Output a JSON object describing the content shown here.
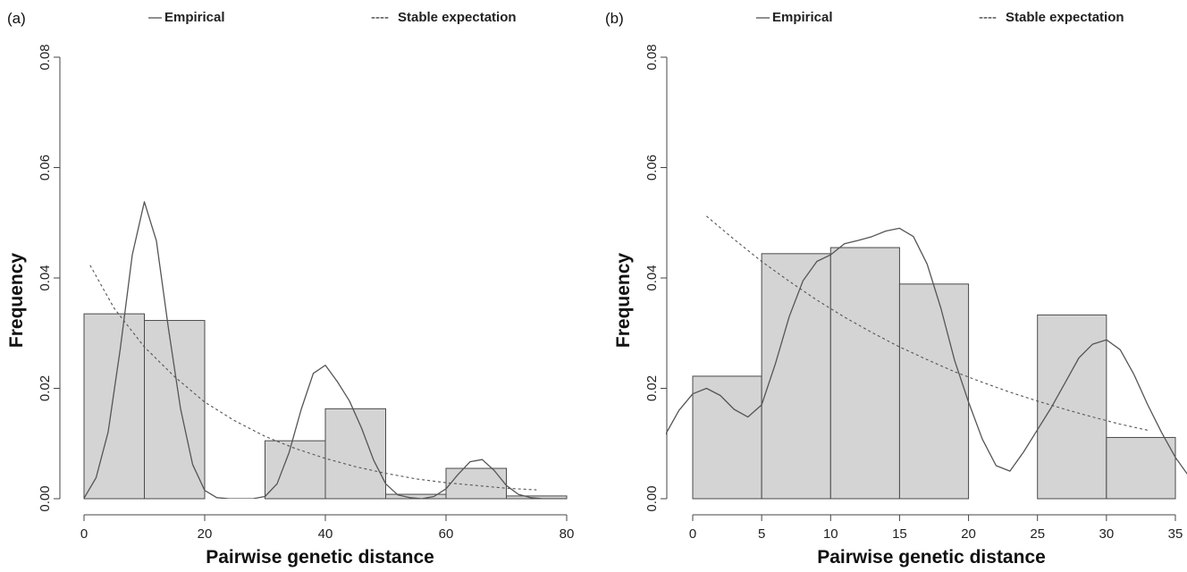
{
  "chart_data": [
    {
      "type": "bar",
      "panel_label": "(a)",
      "legend": {
        "empirical": "Empirical",
        "expected": "Stable expectation"
      },
      "legend_prefix_empirical": "—",
      "legend_prefix_expected": "----",
      "xlabel": "Pairwise genetic distance",
      "ylabel": "Frequency",
      "xlim": [
        0,
        80
      ],
      "ylim": [
        0,
        0.08
      ],
      "xticks": [
        0,
        20,
        40,
        60,
        80
      ],
      "xtick_labels": [
        "0",
        "20",
        "40",
        "60",
        "80"
      ],
      "yticks": [
        0,
        0.02,
        0.04,
        0.06,
        0.08
      ],
      "ytick_labels": [
        "0.00",
        "0.02",
        "0.04",
        "0.06",
        "0.08"
      ],
      "bins": [
        {
          "x0": 0,
          "x1": 10,
          "value": 0.0335
        },
        {
          "x0": 10,
          "x1": 20,
          "value": 0.0323
        },
        {
          "x0": 30,
          "x1": 40,
          "value": 0.0105
        },
        {
          "x0": 40,
          "x1": 50,
          "value": 0.0163
        },
        {
          "x0": 50,
          "x1": 60,
          "value": 0.0008
        },
        {
          "x0": 60,
          "x1": 70,
          "value": 0.0055
        },
        {
          "x0": 70,
          "x1": 80,
          "value": 0.0005
        }
      ],
      "empirical_curve": {
        "x": [
          0,
          2,
          4,
          6,
          8,
          10,
          12,
          14,
          16,
          18,
          20,
          22,
          24,
          26,
          28,
          30,
          32,
          34,
          36,
          38,
          40,
          42,
          44,
          46,
          48,
          50,
          52,
          54,
          56,
          58,
          60,
          62,
          64,
          66,
          68,
          70,
          72,
          74,
          76,
          78,
          80
        ],
        "y": [
          0.0001,
          0.0038,
          0.0121,
          0.0271,
          0.0442,
          0.0538,
          0.0467,
          0.0308,
          0.0163,
          0.0062,
          0.0015,
          0.0002,
          0.0,
          0.0,
          0.0,
          0.0004,
          0.0027,
          0.0084,
          0.0162,
          0.0227,
          0.0242,
          0.0212,
          0.0177,
          0.0128,
          0.007,
          0.0027,
          0.0007,
          0.0002,
          0.0,
          0.0004,
          0.0018,
          0.0044,
          0.0067,
          0.0071,
          0.0051,
          0.0024,
          0.0008,
          0.0002,
          0.0,
          0.0,
          0.0
        ]
      },
      "expected_curve": {
        "x": [
          1,
          5,
          10,
          15,
          20,
          25,
          30,
          35,
          40,
          45,
          50,
          55,
          60,
          65,
          70,
          75
        ],
        "y": [
          0.0423,
          0.0345,
          0.0275,
          0.0221,
          0.0175,
          0.0141,
          0.0113,
          0.0091,
          0.0073,
          0.0058,
          0.0046,
          0.0036,
          0.0029,
          0.0024,
          0.0019,
          0.0016
        ]
      }
    },
    {
      "type": "bar",
      "panel_label": "(b)",
      "legend": {
        "empirical": "Empirical",
        "expected": "Stable expectation"
      },
      "legend_prefix_empirical": "—",
      "legend_prefix_expected": "----",
      "xlabel": "Pairwise genetic distance",
      "ylabel": "Frequency",
      "xlim": [
        0,
        35
      ],
      "ylim": [
        0,
        0.08
      ],
      "xticks": [
        0,
        5,
        10,
        15,
        20,
        25,
        30,
        35
      ],
      "xtick_labels": [
        "0",
        "5",
        "10",
        "15",
        "20",
        "25",
        "30",
        "35"
      ],
      "yticks": [
        0,
        0.02,
        0.04,
        0.06,
        0.08
      ],
      "ytick_labels": [
        "0.00",
        "0.02",
        "0.04",
        "0.06",
        "0.08"
      ],
      "bins": [
        {
          "x0": 0,
          "x1": 5,
          "value": 0.0222
        },
        {
          "x0": 5,
          "x1": 10,
          "value": 0.0444
        },
        {
          "x0": 10,
          "x1": 15,
          "value": 0.0455
        },
        {
          "x0": 15,
          "x1": 20,
          "value": 0.0389
        },
        {
          "x0": 25,
          "x1": 30,
          "value": 0.0333
        },
        {
          "x0": 30,
          "x1": 35,
          "value": 0.0111
        }
      ],
      "empirical_curve": {
        "x": [
          -2,
          -1,
          0,
          1,
          2,
          3,
          4,
          5,
          6,
          7,
          8,
          9,
          10,
          11,
          12,
          13,
          14,
          15,
          16,
          17,
          18,
          19,
          20,
          21,
          22,
          23,
          24,
          25,
          26,
          27,
          28,
          29,
          30,
          31,
          32,
          33,
          34,
          35,
          36
        ],
        "y": [
          0.0115,
          0.016,
          0.019,
          0.02,
          0.0187,
          0.0162,
          0.0148,
          0.017,
          0.0245,
          0.033,
          0.0395,
          0.043,
          0.0442,
          0.0462,
          0.0468,
          0.0475,
          0.0485,
          0.049,
          0.0475,
          0.0425,
          0.0345,
          0.025,
          0.0175,
          0.0108,
          0.006,
          0.005,
          0.0085,
          0.0125,
          0.0165,
          0.021,
          0.0255,
          0.028,
          0.0288,
          0.027,
          0.0225,
          0.017,
          0.012,
          0.0075,
          0.004
        ]
      },
      "expected_curve": {
        "x": [
          1,
          3,
          5,
          7,
          9,
          11,
          13,
          15,
          17,
          19,
          21,
          23,
          25,
          27,
          29,
          31,
          33
        ],
        "y": [
          0.0512,
          0.047,
          0.043,
          0.0394,
          0.036,
          0.0329,
          0.0301,
          0.0275,
          0.0252,
          0.023,
          0.0211,
          0.0193,
          0.0177,
          0.0162,
          0.0148,
          0.0135,
          0.0124
        ]
      }
    }
  ]
}
